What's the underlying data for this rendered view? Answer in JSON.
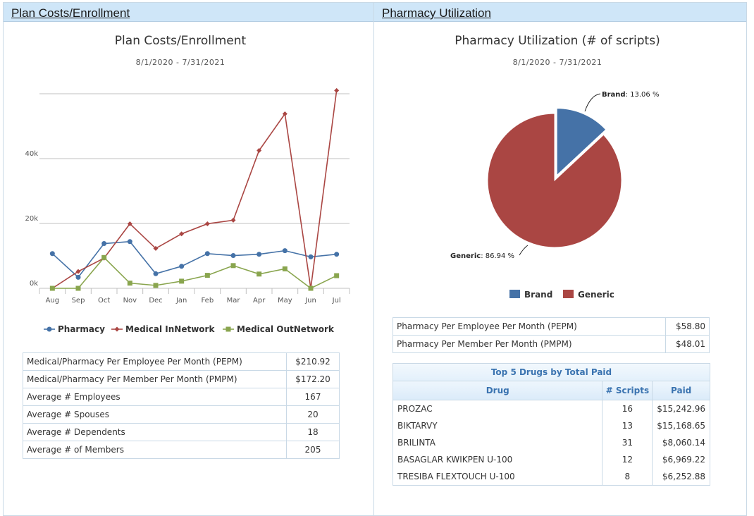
{
  "left_panel": {
    "header": "Plan Costs/Enrollment",
    "chart_title": "Plan Costs/Enrollment",
    "chart_subtitle": "8/1/2020 - 7/31/2021",
    "legend": [
      "Pharmacy",
      "Medical InNetwork",
      "Medical OutNetwork"
    ],
    "summary_rows": [
      {
        "label": "Medical/Pharmacy Per Employee Per Month (PEPM)",
        "value": "$210.92"
      },
      {
        "label": "Medical/Pharmacy Per Member Per Month (PMPM)",
        "value": "$172.20"
      },
      {
        "label": "Average # Employees",
        "value": "167"
      },
      {
        "label": "Average # Spouses",
        "value": "20"
      },
      {
        "label": "Average # Dependents",
        "value": "18"
      },
      {
        "label": "Average # of Members",
        "value": "205"
      }
    ]
  },
  "right_panel": {
    "header": "Pharmacy Utilization",
    "chart_title": "Pharmacy Utilization (# of scripts)",
    "chart_subtitle": "8/1/2020 - 7/31/2021",
    "pie_labels": {
      "brand_name": "Brand",
      "brand_value": ": 13.06 %",
      "generic_name": "Generic",
      "generic_value": ": 86.94 %"
    },
    "legend": [
      "Brand",
      "Generic"
    ],
    "pharmacy_rows": [
      {
        "label": "Pharmacy Per Employee Per Month (PEPM)",
        "value": "$58.80"
      },
      {
        "label": "Pharmacy Per Member Per Month (PMPM)",
        "value": "$48.01"
      }
    ],
    "drugs_table": {
      "caption": "Top 5 Drugs by Total Paid",
      "headers": {
        "drug": "Drug",
        "scripts": "# Scripts",
        "paid": "Paid"
      },
      "rows": [
        {
          "drug": "PROZAC",
          "scripts": "16",
          "paid": "$15,242.96"
        },
        {
          "drug": "BIKTARVY",
          "scripts": "13",
          "paid": "$15,168.65"
        },
        {
          "drug": "BRILINTA",
          "scripts": "31",
          "paid": "$8,060.14"
        },
        {
          "drug": "BASAGLAR KWIKPEN U-100",
          "scripts": "12",
          "paid": "$6,969.22"
        },
        {
          "drug": "TRESIBA FLEXTOUCH U-100",
          "scripts": "8",
          "paid": "$6,252.88"
        }
      ]
    }
  },
  "colors": {
    "pharmacy": "#4572a7",
    "medical_in": "#aa4643",
    "medical_out": "#89a54e",
    "brand": "#4572a7",
    "generic": "#aa4643"
  },
  "chart_data": [
    {
      "type": "line",
      "title": "Plan Costs/Enrollment",
      "subtitle": "8/1/2020 - 7/31/2021",
      "categories": [
        "Aug",
        "Sep",
        "Oct",
        "Nov",
        "Dec",
        "Jan",
        "Feb",
        "Mar",
        "Apr",
        "May",
        "Jun",
        "Jul"
      ],
      "y_tick_labels": [
        "0k",
        "20k",
        "40k"
      ],
      "ylim": [
        0,
        60000
      ],
      "series": [
        {
          "name": "Pharmacy",
          "values": [
            10700,
            3400,
            13800,
            14400,
            4500,
            6800,
            10700,
            10100,
            10500,
            11600,
            9700,
            10500
          ]
        },
        {
          "name": "Medical InNetwork",
          "values": [
            0,
            5200,
            9300,
            19900,
            12300,
            16800,
            19900,
            21000,
            42500,
            53800,
            0,
            61000
          ]
        },
        {
          "name": "Medical OutNetwork",
          "values": [
            0,
            0,
            9500,
            1600,
            900,
            2200,
            4000,
            7000,
            4400,
            6000,
            0,
            3900
          ]
        }
      ],
      "grid": true,
      "legend_position": "bottom"
    },
    {
      "type": "pie",
      "title": "Pharmacy Utilization (# of scripts)",
      "subtitle": "8/1/2020 - 7/31/2021",
      "slices": [
        {
          "name": "Brand",
          "value": 13.06
        },
        {
          "name": "Generic",
          "value": 86.94
        }
      ],
      "legend_position": "bottom"
    }
  ]
}
